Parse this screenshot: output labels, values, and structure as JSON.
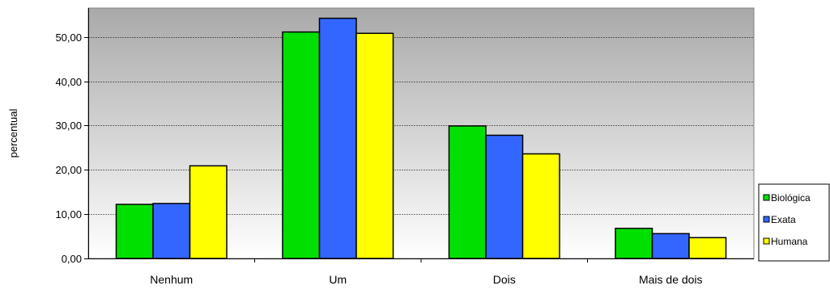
{
  "chart_data": {
    "type": "bar",
    "title": "",
    "xlabel": "",
    "ylabel": "percentual",
    "categories": [
      "Nenhum",
      "Um",
      "Dois",
      "Mais de dois"
    ],
    "series": [
      {
        "name": "Biológica",
        "color": "#00e000",
        "values": [
          12.2,
          51.1,
          29.9,
          6.8
        ]
      },
      {
        "name": "Exata",
        "color": "#3366ff",
        "values": [
          12.4,
          54.2,
          27.8,
          5.6
        ]
      },
      {
        "name": "Humana",
        "color": "#ffff00",
        "values": [
          20.9,
          50.8,
          23.6,
          4.7
        ]
      }
    ],
    "ylim": [
      0,
      56.5
    ],
    "yticks": [
      0,
      10,
      20,
      30,
      40,
      50
    ],
    "ytick_labels": [
      "0,00",
      "10,00",
      "20,00",
      "30,00",
      "40,00",
      "50,00"
    ],
    "grid": true,
    "plot_background": "gradient gray",
    "legend_position": "right"
  }
}
